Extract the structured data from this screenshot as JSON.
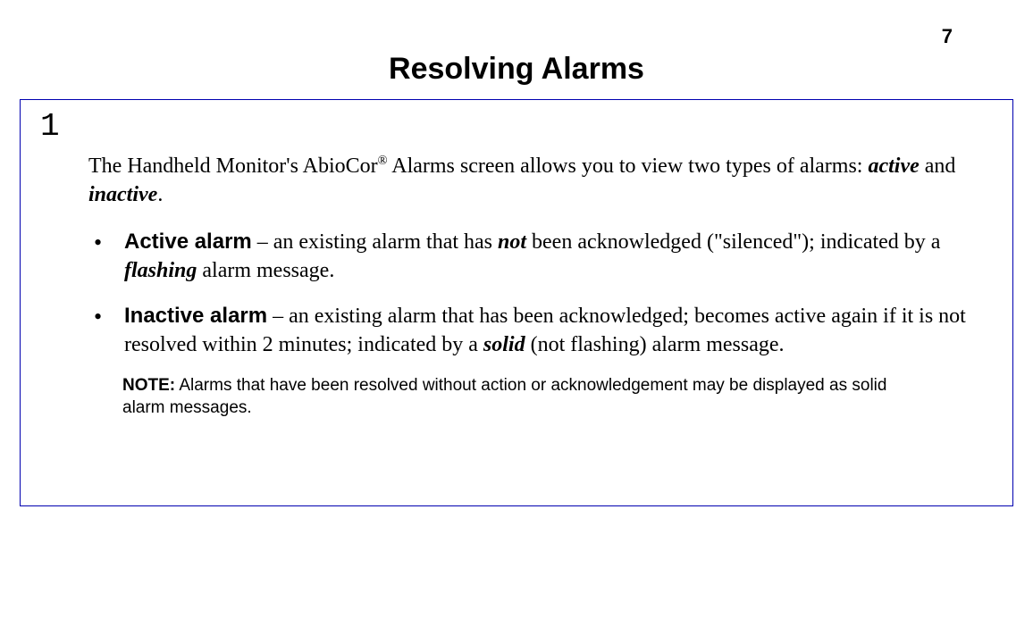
{
  "page_number": "7",
  "title": "Resolving Alarms",
  "section_number": "1",
  "intro": {
    "pre": "The Handheld Monitor's AbioCor",
    "sup": "®",
    "mid": " Alarms screen allows you to view two types of alarms: ",
    "active": "active",
    "and": " and ",
    "inactive": "inactive",
    "end": "."
  },
  "bullets": {
    "active": {
      "term": "Active alarm",
      "dash": " – an existing alarm that has ",
      "not": "not",
      "after_not": " been acknowledged (\"silenced\"); indicated by a ",
      "flashing": "flashing",
      "tail": " alarm message."
    },
    "inactive": {
      "term": "Inactive alarm",
      "dash": " – an existing alarm that has been acknowledged; becomes active again if it is not resolved within 2 minutes; indicated by a ",
      "solid": "solid",
      "tail": " (not flashing) alarm message."
    }
  },
  "note": {
    "label": "NOTE:",
    "text": "  Alarms that have been resolved without action or acknowledgement may be displayed as solid alarm messages."
  },
  "styles": {
    "border_color": "#0000b0",
    "background": "#ffffff",
    "text_color": "#000000"
  }
}
